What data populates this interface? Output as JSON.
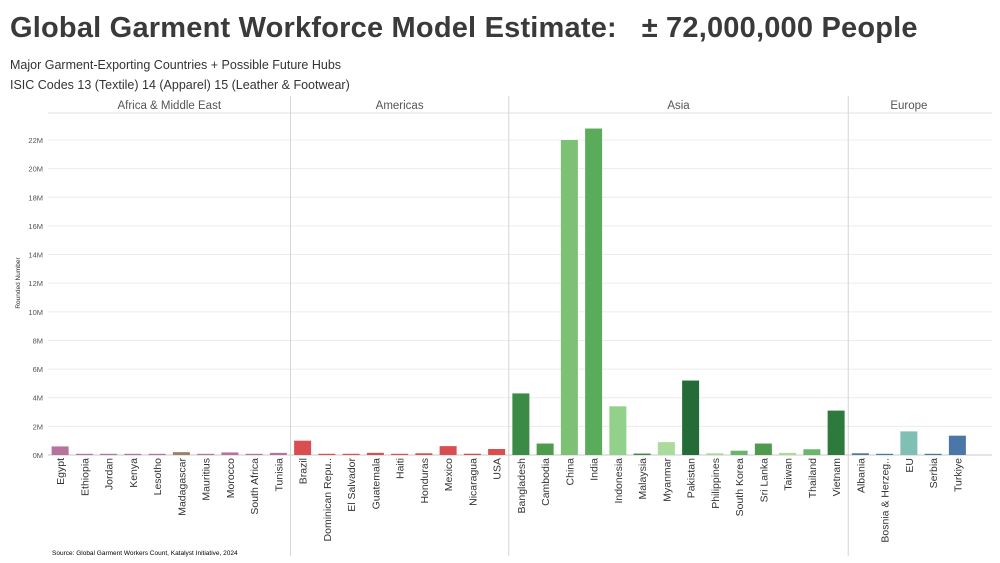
{
  "title": "Global Garment Workforce Model Estimate:   ± 72,000,000 People",
  "subtitle1": "Major Garment-Exporting Countries + Possible Future Hubs",
  "subtitle2": "ISIC Codes 13 (Textile) 14 (Apparel) 15 (Leather & Footwear)",
  "source": "Source: Global Garment Workers Count, Katalyst Initiative, 2024",
  "chart_data": {
    "type": "bar",
    "ylabel": "Rounded Number",
    "ylim": [
      0,
      23000000
    ],
    "yticks": [
      0,
      2000000,
      4000000,
      6000000,
      8000000,
      10000000,
      12000000,
      14000000,
      16000000,
      18000000,
      20000000,
      22000000
    ],
    "ytick_labels": [
      "0M",
      "2M",
      "4M",
      "6M",
      "8M",
      "10M",
      "12M",
      "14M",
      "16M",
      "18M",
      "20M",
      "22M"
    ],
    "grid": true,
    "groups": [
      {
        "name": "Africa & Middle East",
        "categories": [
          {
            "label": "Egypt",
            "value": 600000,
            "color": "#b5739d"
          },
          {
            "label": "Ethiopia",
            "value": 30000,
            "color": "#b5739d"
          },
          {
            "label": "Jordan",
            "value": 80000,
            "color": "#b5739d"
          },
          {
            "label": "Kenya",
            "value": 50000,
            "color": "#b5739d"
          },
          {
            "label": "Lesotho",
            "value": 40000,
            "color": "#b5739d"
          },
          {
            "label": "Madagascar",
            "value": 200000,
            "color": "#a07f6a"
          },
          {
            "label": "Mauritius",
            "value": 30000,
            "color": "#b5739d"
          },
          {
            "label": "Morocco",
            "value": 180000,
            "color": "#b5739d"
          },
          {
            "label": "South Africa",
            "value": 60000,
            "color": "#b5739d"
          },
          {
            "label": "Tunisia",
            "value": 150000,
            "color": "#b5739d"
          }
        ]
      },
      {
        "name": "Americas",
        "categories": [
          {
            "label": "Brazil",
            "value": 1000000,
            "color": "#d94f4f"
          },
          {
            "label": "Dominican Repu..",
            "value": 20000,
            "color": "#d94f4f"
          },
          {
            "label": "El Salvador",
            "value": 80000,
            "color": "#d94f4f"
          },
          {
            "label": "Guatemala",
            "value": 150000,
            "color": "#d94f4f"
          },
          {
            "label": "Haiti",
            "value": 40000,
            "color": "#d94f4f"
          },
          {
            "label": "Honduras",
            "value": 120000,
            "color": "#d94f4f"
          },
          {
            "label": "Mexico",
            "value": 620000,
            "color": "#d94f4f"
          },
          {
            "label": "Nicaragua",
            "value": 90000,
            "color": "#d94f4f"
          },
          {
            "label": "USA",
            "value": 420000,
            "color": "#d94f4f"
          }
        ]
      },
      {
        "name": "Asia",
        "categories": [
          {
            "label": "Bangladesh",
            "value": 4300000,
            "color": "#3b8a45"
          },
          {
            "label": "Cambodia",
            "value": 800000,
            "color": "#4e9a4e"
          },
          {
            "label": "China",
            "value": 22000000,
            "color": "#7cc174"
          },
          {
            "label": "India",
            "value": 22800000,
            "color": "#5aab5a"
          },
          {
            "label": "Indonesia",
            "value": 3400000,
            "color": "#91d18a"
          },
          {
            "label": "Malaysia",
            "value": 100000,
            "color": "#3b8a45"
          },
          {
            "label": "Myanmar",
            "value": 900000,
            "color": "#a9dc9c"
          },
          {
            "label": "Pakistan",
            "value": 5200000,
            "color": "#236b37"
          },
          {
            "label": "Philippines",
            "value": 120000,
            "color": "#a9dc9c"
          },
          {
            "label": "South Korea",
            "value": 300000,
            "color": "#6bb46b"
          },
          {
            "label": "Sri Lanka",
            "value": 800000,
            "color": "#4e9a4e"
          },
          {
            "label": "Taiwan",
            "value": 150000,
            "color": "#a9dc9c"
          },
          {
            "label": "Thailand",
            "value": 400000,
            "color": "#6bb46b"
          },
          {
            "label": "Vietnam",
            "value": 3100000,
            "color": "#2d7a3c"
          }
        ]
      },
      {
        "name": "Europe",
        "categories": [
          {
            "label": "Albania",
            "value": 120000,
            "color": "#4a76a8"
          },
          {
            "label": "Bosnia & Herzeg..",
            "value": 30000,
            "color": "#4a76a8"
          },
          {
            "label": "EU",
            "value": 1650000,
            "color": "#80bfb4"
          },
          {
            "label": "Serbia",
            "value": 40000,
            "color": "#4a76a8"
          },
          {
            "label": "Turkiye",
            "value": 1350000,
            "color": "#4a76a8"
          }
        ]
      }
    ]
  }
}
